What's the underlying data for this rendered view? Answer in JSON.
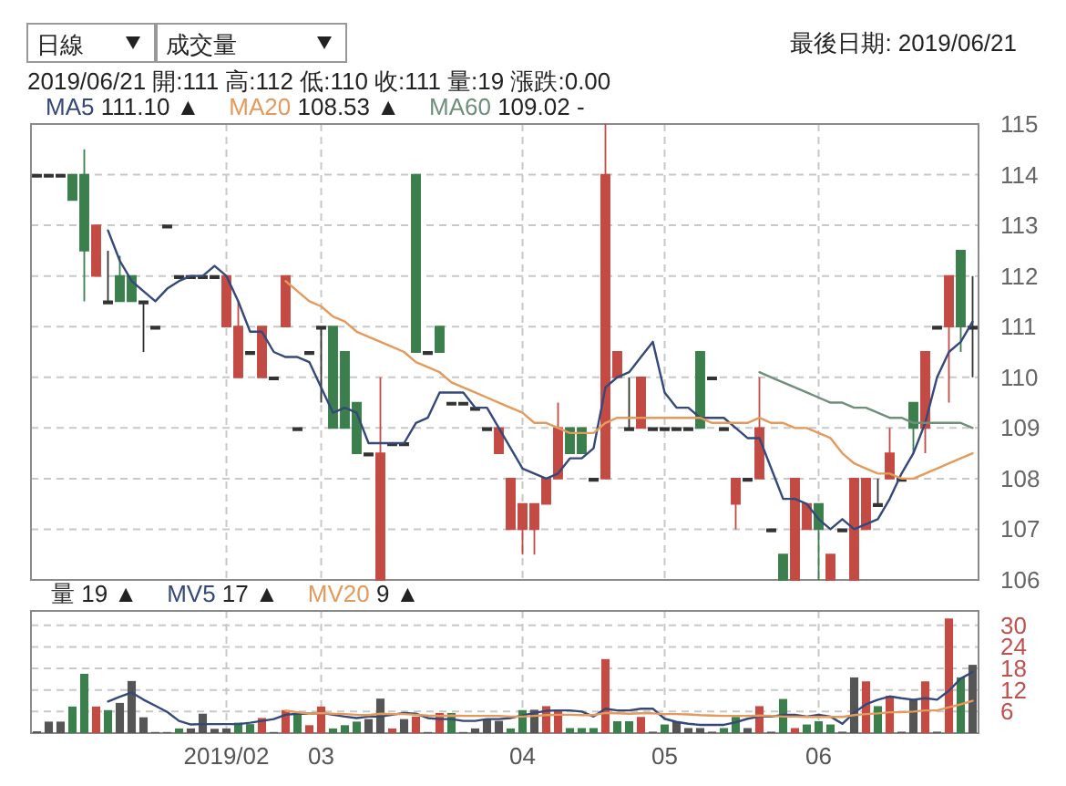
{
  "chart_data": [
    {
      "type": "candlestick",
      "categories": [
        null,
        null,
        null,
        null,
        null,
        null,
        null,
        null,
        null,
        null,
        null,
        null,
        null,
        null,
        null,
        null,
        "2019/02",
        null,
        null,
        null,
        null,
        null,
        null,
        null,
        "03",
        null,
        null,
        null,
        null,
        null,
        null,
        null,
        null,
        null,
        null,
        null,
        null,
        null,
        null,
        null,
        null,
        "04",
        null,
        null,
        null,
        null,
        null,
        null,
        null,
        null,
        null,
        null,
        null,
        "05",
        null,
        null,
        null,
        null,
        null,
        null,
        null,
        null,
        null,
        null,
        null,
        null,
        "06",
        null,
        null,
        null,
        null,
        null,
        null,
        null,
        null,
        null,
        null,
        null,
        null,
        null
      ],
      "ohlc": [
        [
          114,
          114,
          114,
          114
        ],
        [
          114,
          114,
          114,
          114
        ],
        [
          114,
          114,
          114,
          114
        ],
        [
          114,
          114,
          113.5,
          113.5
        ],
        [
          114,
          114.5,
          111.5,
          112.5
        ],
        [
          112,
          113,
          112,
          113
        ],
        [
          111.5,
          112.5,
          111.5,
          111.5
        ],
        [
          112,
          112.4,
          111.5,
          111.5
        ],
        [
          112,
          112,
          111.5,
          111.5
        ],
        [
          111.5,
          111.5,
          110.5,
          111.5
        ],
        [
          111,
          111,
          111,
          111
        ],
        [
          113,
          113,
          113,
          113
        ],
        [
          112,
          112,
          112,
          112
        ],
        [
          112,
          112,
          112,
          112
        ],
        [
          112,
          112,
          112,
          112
        ],
        [
          112,
          112,
          112,
          112
        ],
        [
          111,
          112,
          111,
          112
        ],
        [
          110,
          111.5,
          110,
          111
        ],
        [
          110.5,
          110.5,
          110.5,
          110.5
        ],
        [
          110,
          111,
          110,
          111
        ],
        [
          110,
          110,
          110,
          110
        ],
        [
          111,
          112,
          111,
          112
        ],
        [
          109,
          109,
          109,
          109
        ],
        [
          110.5,
          110.5,
          110.5,
          110.5
        ],
        [
          111,
          111,
          109.5,
          111
        ],
        [
          111,
          111,
          109,
          109
        ],
        [
          110.5,
          110.5,
          109,
          109
        ],
        [
          109.5,
          109.5,
          108.5,
          108.5
        ],
        [
          108.5,
          108.5,
          108.5,
          108.5
        ],
        [
          106,
          110,
          106,
          108.5
        ],
        [
          108.7,
          108.7,
          108.7,
          108.7
        ],
        [
          108.7,
          108.7,
          108.7,
          108.7
        ],
        [
          114,
          114,
          110.5,
          110.5
        ],
        [
          110.5,
          110.5,
          110.5,
          110.5
        ],
        [
          111,
          111,
          110.5,
          110.5
        ],
        [
          109.5,
          109.5,
          109.5,
          109.5
        ],
        [
          109.5,
          109.5,
          109.5,
          109.5
        ],
        [
          109.4,
          109.4,
          109.4,
          109.4
        ],
        [
          109,
          109,
          109,
          109
        ],
        [
          108.5,
          109,
          108.5,
          109
        ],
        [
          107,
          108,
          107,
          108
        ],
        [
          107,
          107.5,
          106.5,
          107.5
        ],
        [
          107,
          107.5,
          106.5,
          107.5
        ],
        [
          107.5,
          108,
          107.5,
          108
        ],
        [
          108,
          109.5,
          108,
          109
        ],
        [
          109,
          109,
          108.5,
          108.5
        ],
        [
          109,
          109,
          108.5,
          108.5
        ],
        [
          108,
          108,
          108,
          108
        ],
        [
          108,
          115,
          108,
          114
        ],
        [
          110,
          110.5,
          110,
          110.5
        ],
        [
          109,
          110,
          109,
          109
        ],
        [
          109,
          110,
          109,
          110
        ],
        [
          109,
          109,
          109,
          109
        ],
        [
          109,
          109,
          109,
          109
        ],
        [
          109,
          109,
          109,
          109
        ],
        [
          109,
          109,
          109,
          109
        ],
        [
          110.5,
          110.5,
          109,
          109
        ],
        [
          110,
          110,
          110,
          110
        ],
        [
          109,
          109,
          109,
          109
        ],
        [
          107.5,
          108,
          107,
          108
        ],
        [
          108,
          108,
          108,
          108
        ],
        [
          108,
          110,
          108,
          109
        ],
        [
          107,
          107,
          107,
          107
        ],
        [
          106.5,
          106.5,
          106,
          106
        ],
        [
          106,
          108,
          106,
          108
        ],
        [
          107,
          107.5,
          107,
          107.5
        ],
        [
          107.5,
          107.5,
          106,
          107
        ],
        [
          106,
          106.5,
          106,
          106.5
        ],
        [
          107,
          107,
          107,
          107
        ],
        [
          106,
          108,
          106,
          108
        ],
        [
          107,
          108,
          107,
          108
        ],
        [
          107.5,
          108,
          107.5,
          107.5
        ],
        [
          108,
          109,
          108,
          108.5
        ],
        [
          108,
          108,
          108,
          108
        ],
        [
          109.5,
          109.5,
          108.5,
          109
        ],
        [
          109,
          110.5,
          108.5,
          110.5
        ],
        [
          111,
          111,
          111,
          111
        ],
        [
          111,
          112,
          109.5,
          112
        ],
        [
          112.5,
          112.5,
          110.5,
          111
        ],
        [
          111,
          112,
          110,
          111
        ]
      ],
      "colors": [
        "#333333",
        "#333333",
        "#333333",
        "#3b7f4c",
        "#3b7f4c",
        "#c44a44",
        "#333333",
        "#3b7f4c",
        "#3b7f4c",
        "#333333",
        "#333333",
        "#333333",
        "#333333",
        "#333333",
        "#333333",
        "#333333",
        "#c44a44",
        "#c44a44",
        "#333333",
        "#c44a44",
        "#333333",
        "#c44a44",
        "#333333",
        "#333333",
        "#333333",
        "#3b7f4c",
        "#3b7f4c",
        "#3b7f4c",
        "#333333",
        "#c44a44",
        "#333333",
        "#333333",
        "#3b7f4c",
        "#333333",
        "#3b7f4c",
        "#333333",
        "#333333",
        "#333333",
        "#333333",
        "#c44a44",
        "#c44a44",
        "#c44a44",
        "#c44a44",
        "#c44a44",
        "#c44a44",
        "#3b7f4c",
        "#3b7f4c",
        "#333333",
        "#c44a44",
        "#c44a44",
        "#333333",
        "#c44a44",
        "#333333",
        "#333333",
        "#333333",
        "#333333",
        "#3b7f4c",
        "#333333",
        "#333333",
        "#c44a44",
        "#333333",
        "#c44a44",
        "#333333",
        "#3b7f4c",
        "#c44a44",
        "#c44a44",
        "#3b7f4c",
        "#c44a44",
        "#333333",
        "#c44a44",
        "#c44a44",
        "#333333",
        "#c44a44",
        "#333333",
        "#3b7f4c",
        "#c44a44",
        "#333333",
        "#c44a44",
        "#3b7f4c",
        "#333333"
      ],
      "series": [
        {
          "name": "MA5 111.10 ▲",
          "type": "line",
          "color": "#34497a",
          "values": [
            null,
            null,
            null,
            null,
            null,
            null,
            112.9,
            112.3,
            111.9,
            111.7,
            111.5,
            111.75,
            111.9,
            112,
            112,
            112.2,
            112,
            111.5,
            110.9,
            110.9,
            110.5,
            110.4,
            110.4,
            110.3,
            109.8,
            109.3,
            109.4,
            109.3,
            108.7,
            108.7,
            108.7,
            108.7,
            109.1,
            109.2,
            109.7,
            109.7,
            109.7,
            109.4,
            109.4,
            109.0,
            108.6,
            108.2,
            108.1,
            108.0,
            108.1,
            108.4,
            108.4,
            108.6,
            109.8,
            110.0,
            110.1,
            110.4,
            110.7,
            109.7,
            109.4,
            109.4,
            109.2,
            109.2,
            109.2,
            109.0,
            108.8,
            108.8,
            108.2,
            107.6,
            107.6,
            107.5,
            107.2,
            107.0,
            107.2,
            107.0,
            107.1,
            107.2,
            107.6,
            108.1,
            108.5,
            109.1,
            110.0,
            110.5,
            110.7,
            111.1
          ]
        },
        {
          "name": "MA20 108.53 ▲",
          "type": "line",
          "color": "#e39a5a",
          "values": [
            null,
            null,
            null,
            null,
            null,
            null,
            null,
            null,
            null,
            null,
            null,
            null,
            null,
            null,
            null,
            null,
            null,
            null,
            null,
            null,
            null,
            111.9,
            111.7,
            111.5,
            111.4,
            111.2,
            111.1,
            110.9,
            110.8,
            110.7,
            110.6,
            110.5,
            110.3,
            110.2,
            110.1,
            109.9,
            109.8,
            109.7,
            109.6,
            109.5,
            109.4,
            109.3,
            109.1,
            109.1,
            109.0,
            108.9,
            108.9,
            108.9,
            109.1,
            109.2,
            109.2,
            109.2,
            109.2,
            109.2,
            109.2,
            109.2,
            109.2,
            109.1,
            109.1,
            109.1,
            109.1,
            109.2,
            109.1,
            109.1,
            109.0,
            109.0,
            108.9,
            108.8,
            108.5,
            108.3,
            108.2,
            108.1,
            108.1,
            108.0,
            108.0,
            108.1,
            108.2,
            108.3,
            108.4,
            108.5
          ]
        },
        {
          "name": "MA60 109.02 -",
          "type": "line",
          "color": "#6f8f7a",
          "values": [
            null,
            null,
            null,
            null,
            null,
            null,
            null,
            null,
            null,
            null,
            null,
            null,
            null,
            null,
            null,
            null,
            null,
            null,
            null,
            null,
            null,
            null,
            null,
            null,
            null,
            null,
            null,
            null,
            null,
            null,
            null,
            null,
            null,
            null,
            null,
            null,
            null,
            null,
            null,
            null,
            null,
            null,
            null,
            null,
            null,
            null,
            null,
            null,
            null,
            null,
            null,
            null,
            null,
            null,
            null,
            null,
            null,
            null,
            null,
            null,
            null,
            110.1,
            110.0,
            109.9,
            109.8,
            109.7,
            109.6,
            109.5,
            109.5,
            109.4,
            109.4,
            109.3,
            109.2,
            109.2,
            109.1,
            109.1,
            109.1,
            109.1,
            109.1,
            109.0
          ]
        }
      ],
      "ylim": [
        106,
        115
      ],
      "yticks": [
        106,
        107,
        108,
        109,
        110,
        111,
        112,
        113,
        114,
        115
      ],
      "grid": true,
      "legend": "top left",
      "tick_labels": "y",
      "annotations": [
        "日線",
        "成交量",
        "最後日期: 2019/06/21",
        "2019/06/21  開:111  高:112  低:110  收:111  量:19  漲跌:0.00"
      ]
    },
    {
      "type": "bar",
      "categories": [
        null,
        null,
        null,
        null,
        null,
        null,
        null,
        null,
        null,
        null,
        null,
        null,
        null,
        null,
        null,
        null,
        "2019/02",
        null,
        null,
        null,
        null,
        null,
        null,
        null,
        "03",
        null,
        null,
        null,
        null,
        null,
        null,
        null,
        null,
        null,
        null,
        null,
        null,
        null,
        null,
        null,
        null,
        "04",
        null,
        null,
        null,
        null,
        null,
        null,
        null,
        null,
        null,
        null,
        null,
        "05",
        null,
        null,
        null,
        null,
        null,
        null,
        null,
        null,
        null,
        null,
        null,
        null,
        "06",
        null,
        null,
        null,
        null,
        null,
        null,
        null,
        null,
        null,
        null,
        null,
        null,
        null
      ],
      "series": [
        {
          "name": "量 19 ▲",
          "type": "bar",
          "values": [
            0.5,
            3.2,
            3.2,
            7.4,
            16.5,
            7.4,
            6.4,
            8.4,
            14.5,
            4.4,
            0.3,
            0.3,
            1.3,
            1.3,
            5.4,
            1.2,
            1.3,
            2.9,
            2.5,
            4.2,
            0.3,
            6.4,
            5.2,
            2.2,
            7.4,
            1.3,
            2.2,
            3.2,
            3.9,
            9.6,
            1.3,
            3.9,
            4.6,
            0.3,
            5.6,
            5.6,
            0.3,
            1.3,
            3.9,
            3.4,
            1.3,
            6.4,
            6.5,
            7.5,
            6.5,
            1.4,
            1.4,
            1.4,
            20.6,
            3.3,
            3.3,
            4.5,
            0.4,
            2.4,
            3.3,
            1.4,
            1.4,
            0.4,
            1.4,
            4.5,
            1.4,
            7.5,
            0.4,
            9.5,
            1.4,
            2.4,
            3.3,
            2.4,
            0.4,
            15.5,
            14.4,
            7.5,
            10.4,
            0.4,
            9.5,
            14.4,
            0.4,
            31.9,
            15.5,
            19
          ],
          "colors": [
            "#555555",
            "#555555",
            "#555555",
            "#3b7f4c",
            "#3b7f4c",
            "#c44a44",
            "#3b7f4c",
            "#555555",
            "#555555",
            "#555555",
            "#555555",
            "#555555",
            "#3b7f4c",
            "#555555",
            "#555555",
            "#555555",
            "#555555",
            "#3b7f4c",
            "#3b7f4c",
            "#c44a44",
            "#555555",
            "#c44a44",
            "#3b7f4c",
            "#c44a44",
            "#c44a44",
            "#3b7f4c",
            "#3b7f4c",
            "#3b7f4c",
            "#555555",
            "#555555",
            "#c44a44",
            "#555555",
            "#c44a44",
            "#555555",
            "#c44a44",
            "#3b7f4c",
            "#555555",
            "#555555",
            "#555555",
            "#555555",
            "#3b7f4c",
            "#3b7f4c",
            "#555555",
            "#c44a44",
            "#c44a44",
            "#3b7f4c",
            "#3b7f4c",
            "#3b7f4c",
            "#c44a44",
            "#3b7f4c",
            "#3b7f4c",
            "#c44a44",
            "#555555",
            "#3b7f4c",
            "#555555",
            "#555555",
            "#555555",
            "#555555",
            "#3b7f4c",
            "#3b7f4c",
            "#555555",
            "#c44a44",
            "#555555",
            "#3b7f4c",
            "#c44a44",
            "#3b7f4c",
            "#3b7f4c",
            "#3b7f4c",
            "#555555",
            "#555555",
            "#c44a44",
            "#3b7f4c",
            "#c44a44",
            "#555555",
            "#555555",
            "#c44a44",
            "#555555",
            "#c44a44",
            "#3b7f4c",
            "#555555"
          ]
        },
        {
          "name": "MV5 17 ▲",
          "type": "line",
          "color": "#34497a",
          "values": [
            null,
            null,
            null,
            null,
            null,
            null,
            8.8,
            10.1,
            11.3,
            9.3,
            7.6,
            5.9,
            3.4,
            2.4,
            2.5,
            2.5,
            2.5,
            2.5,
            2.9,
            3.4,
            3.9,
            5.1,
            5.4,
            5.4,
            5.6,
            5.1,
            4.6,
            4.2,
            4.6,
            4.6,
            5.1,
            5.6,
            5.4,
            4.2,
            3.9,
            3.9,
            3.4,
            3.4,
            3.9,
            3.9,
            4.2,
            4.9,
            5.6,
            6.2,
            6.3,
            6.3,
            6.0,
            4.6,
            6.8,
            6.3,
            6.3,
            6.8,
            6.8,
            4.0,
            3.1,
            2.6,
            2.3,
            2.3,
            2.3,
            3.0,
            4.0,
            4.6,
            4.6,
            5.1,
            5.1,
            4.6,
            5.1,
            4.6,
            2.6,
            5.7,
            8.0,
            9.3,
            10.2,
            9.7,
            9.3,
            9.7,
            9.3,
            11.8,
            15.2,
            17
          ]
        },
        {
          "name": "MV20 9 ▲",
          "type": "line",
          "color": "#e39a5a",
          "values": [
            null,
            null,
            null,
            null,
            null,
            null,
            null,
            null,
            null,
            null,
            null,
            null,
            null,
            null,
            null,
            null,
            null,
            null,
            null,
            null,
            null,
            6.2,
            5.8,
            5.4,
            5.6,
            5.4,
            5.3,
            5.1,
            5.0,
            5.4,
            5.3,
            5.3,
            5.1,
            4.9,
            4.8,
            4.9,
            4.8,
            4.8,
            4.8,
            4.8,
            4.6,
            4.6,
            4.8,
            5.0,
            5.1,
            5.1,
            5.0,
            5.0,
            5.6,
            5.5,
            5.4,
            5.5,
            5.5,
            5.3,
            5.3,
            5.2,
            5.0,
            4.9,
            4.8,
            4.8,
            4.8,
            4.9,
            4.8,
            4.6,
            4.6,
            4.5,
            4.5,
            4.5,
            4.5,
            5.0,
            5.3,
            5.5,
            5.8,
            5.8,
            6.0,
            6.3,
            6.3,
            7.2,
            8.0,
            9
          ]
        }
      ],
      "ylim": [
        0,
        34
      ],
      "yticks": [
        6,
        12,
        18,
        24,
        30
      ],
      "grid": true,
      "legend": "top left"
    }
  ]
}
